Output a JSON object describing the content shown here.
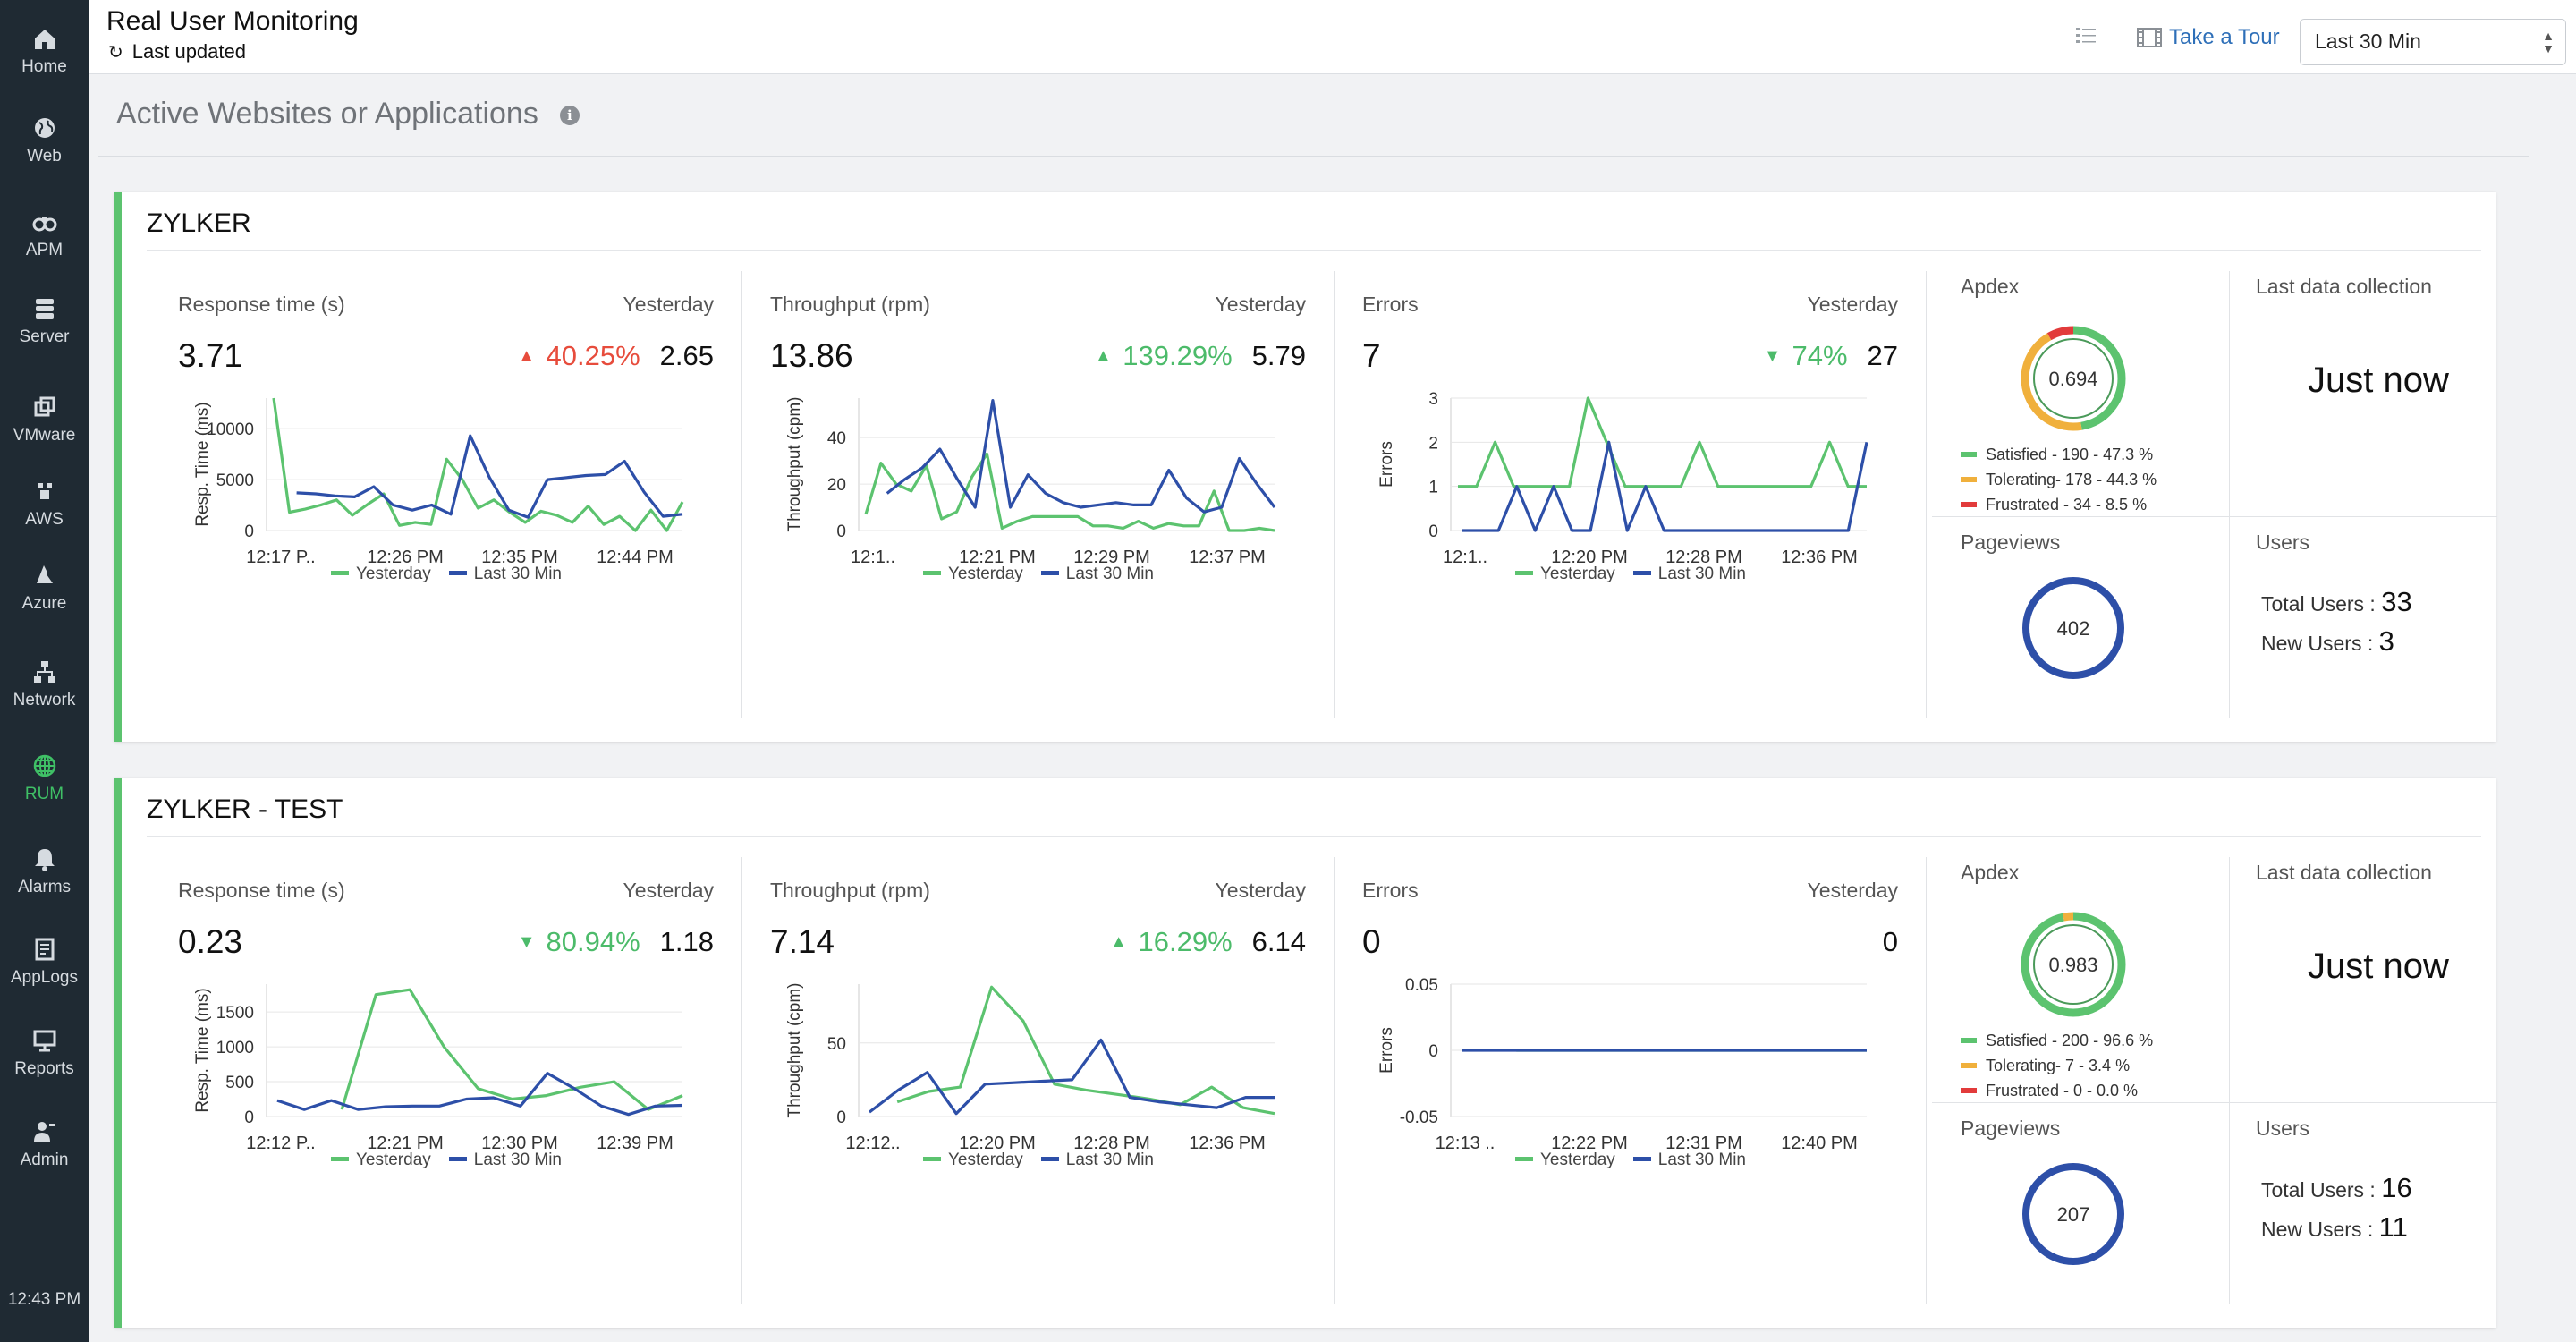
{
  "sidebar": {
    "items": [
      {
        "label": "Home",
        "icon": "home-icon"
      },
      {
        "label": "Web",
        "icon": "globe-icon"
      },
      {
        "label": "APM",
        "icon": "binoculars-icon"
      },
      {
        "label": "Server",
        "icon": "server-icon"
      },
      {
        "label": "VMware",
        "icon": "vmware-icon"
      },
      {
        "label": "AWS",
        "icon": "aws-icon"
      },
      {
        "label": "Azure",
        "icon": "azure-icon"
      },
      {
        "label": "Network",
        "icon": "network-icon"
      },
      {
        "label": "RUM",
        "icon": "rum-globe-icon",
        "active": true
      },
      {
        "label": "Alarms",
        "icon": "bell-icon"
      },
      {
        "label": "AppLogs",
        "icon": "applogs-icon"
      },
      {
        "label": "Reports",
        "icon": "reports-icon"
      },
      {
        "label": "Admin",
        "icon": "admin-icon"
      }
    ],
    "clock": "12:43 PM"
  },
  "header": {
    "title": "Real User Monitoring",
    "last_updated": "Last updated",
    "tour_label": "Take a Tour",
    "range_value": "Last 30 Min"
  },
  "section": {
    "title": "Active Websites or Applications"
  },
  "colors": {
    "yesterday": "#5cc36f",
    "last30": "#2d4fa8",
    "satisfied": "#5cc36f",
    "tolerating": "#f0b03c",
    "frustrated": "#e23b3b",
    "accent_bad": "#e74c3c",
    "accent_good": "#4cbb6a"
  },
  "legend": {
    "yesterday": "Yesterday",
    "last30": "Last 30 Min"
  },
  "apps": [
    {
      "name": "ZYLKER",
      "panels": [
        {
          "title": "Response time (s)",
          "yesterday_label": "Yesterday",
          "value": "3.71",
          "change": "40.25%",
          "direction": "up",
          "good": false,
          "yesterday_value": "2.65"
        },
        {
          "title": "Throughput (rpm)",
          "yesterday_label": "Yesterday",
          "value": "13.86",
          "change": "139.29%",
          "direction": "up",
          "good": true,
          "yesterday_value": "5.79"
        },
        {
          "title": "Errors",
          "yesterday_label": "Yesterday",
          "value": "7",
          "change": "74%",
          "direction": "down",
          "good": true,
          "yesterday_value": "27"
        }
      ],
      "apdex": {
        "title": "Apdex",
        "score": "0.694",
        "satisfied": "Satisfied  - 190 - 47.3 %",
        "tolerating": "Tolerating- 178 - 44.3 %",
        "frustrated": "Frustrated - 34 - 8.5 %",
        "satisfied_frac": 0.473,
        "tolerating_frac": 0.443,
        "frustrated_frac": 0.085
      },
      "last_collection": {
        "title": "Last data collection",
        "value": "Just now"
      },
      "pageviews": {
        "title": "Pageviews",
        "value": "402"
      },
      "users": {
        "title": "Users",
        "total_label": "Total Users : ",
        "total": "33",
        "new_label": "New Users : ",
        "new": "3"
      }
    },
    {
      "name": "ZYLKER - TEST",
      "panels": [
        {
          "title": "Response time (s)",
          "yesterday_label": "Yesterday",
          "value": "0.23",
          "change": "80.94%",
          "direction": "down",
          "good": true,
          "yesterday_value": "1.18"
        },
        {
          "title": "Throughput (rpm)",
          "yesterday_label": "Yesterday",
          "value": "7.14",
          "change": "16.29%",
          "direction": "up",
          "good": true,
          "yesterday_value": "6.14"
        },
        {
          "title": "Errors",
          "yesterday_label": "Yesterday",
          "value": "0",
          "change": "",
          "direction": "none",
          "good": true,
          "yesterday_value": "0"
        }
      ],
      "apdex": {
        "title": "Apdex",
        "score": "0.983",
        "satisfied": "Satisfied  - 200 - 96.6 %",
        "tolerating": "Tolerating- 7 - 3.4 %",
        "frustrated": "Frustrated - 0 - 0.0 %",
        "satisfied_frac": 0.966,
        "tolerating_frac": 0.034,
        "frustrated_frac": 0.0
      },
      "last_collection": {
        "title": "Last data collection",
        "value": "Just now"
      },
      "pageviews": {
        "title": "Pageviews",
        "value": "207"
      },
      "users": {
        "title": "Users",
        "total_label": "Total Users : ",
        "total": "16",
        "new_label": "New Users : ",
        "new": "11"
      }
    }
  ],
  "chart_data": [
    {
      "type": "line",
      "ylabel": "Resp. Time (ms)",
      "ylim": [
        0,
        13000
      ],
      "yticks": [
        0,
        5000,
        10000
      ],
      "xticks": [
        "12:17 P..",
        "12:26 PM",
        "12:35 PM",
        "12:44 PM"
      ],
      "series": [
        {
          "name": "Yesterday",
          "values": [
            13000,
            1800,
            2100,
            2500,
            3000,
            1500,
            2600,
            3600,
            500,
            800,
            600,
            7000,
            5000,
            2200,
            3000,
            1800,
            800,
            1900,
            1500,
            800,
            2400,
            600,
            1400,
            0,
            2000,
            0,
            2800
          ]
        },
        {
          "name": "Last 30 Min",
          "values": [
            null,
            3700,
            3600,
            3400,
            3300,
            4300,
            2500,
            2000,
            2500,
            1600,
            9300,
            5200,
            2000,
            1300,
            5000,
            5200,
            5400,
            5500,
            6800,
            3800,
            1400,
            1600
          ]
        }
      ]
    },
    {
      "type": "line",
      "ylabel": "Throughput (cpm)",
      "ylim": [
        0,
        57
      ],
      "yticks": [
        0,
        20,
        40
      ],
      "xticks": [
        "12:1..",
        "12:21 PM",
        "12:29 PM",
        "12:37 PM"
      ],
      "series": [
        {
          "name": "Yesterday",
          "values": [
            7,
            29,
            20,
            17,
            28,
            5,
            8,
            23,
            33,
            1,
            4,
            6,
            6,
            6,
            6,
            2,
            2,
            1,
            4,
            1,
            3,
            2,
            2,
            17,
            0,
            0,
            1,
            0
          ]
        },
        {
          "name": "Last 30 Min",
          "values": [
            null,
            16,
            22,
            27,
            35,
            22,
            10,
            56,
            10,
            24,
            16,
            12,
            10,
            11,
            12,
            11,
            11,
            26,
            14,
            8,
            10,
            31,
            20,
            10
          ]
        }
      ]
    },
    {
      "type": "line",
      "ylabel": "Errors",
      "ylim": [
        0,
        3
      ],
      "yticks": [
        0,
        1,
        2,
        3
      ],
      "xticks": [
        "12:1..",
        "12:20 PM",
        "12:28 PM",
        "12:36 PM"
      ],
      "series": [
        {
          "name": "Yesterday",
          "values": [
            1,
            1,
            2,
            1,
            1,
            1,
            1,
            3,
            2,
            1,
            1,
            1,
            1,
            2,
            1,
            1,
            1,
            1,
            1,
            1,
            2,
            1,
            1
          ]
        },
        {
          "name": "Last 30 Min",
          "values": [
            0,
            0,
            0,
            1,
            0,
            1,
            0,
            0,
            2,
            0,
            1,
            0,
            0,
            0,
            0,
            0,
            0,
            0,
            0,
            0,
            0,
            0,
            2
          ]
        }
      ]
    },
    {
      "type": "line",
      "ylabel": "Resp. Time (ms)",
      "ylim": [
        0,
        1900
      ],
      "yticks": [
        0,
        500,
        1000,
        1500
      ],
      "xticks": [
        "12:12 P..",
        "12:21 PM",
        "12:30 PM",
        "12:39 PM"
      ],
      "series": [
        {
          "name": "Yesterday",
          "values": [
            null,
            null,
            100,
            1750,
            1820,
            1000,
            400,
            250,
            300,
            420,
            500,
            100,
            300
          ]
        },
        {
          "name": "Last 30 Min",
          "values": [
            230,
            100,
            230,
            100,
            140,
            150,
            150,
            250,
            270,
            150,
            620,
            400,
            150,
            30,
            150,
            160
          ]
        }
      ]
    },
    {
      "type": "line",
      "ylabel": "Throughput (cpm)",
      "ylim": [
        0,
        90
      ],
      "yticks": [
        0,
        50
      ],
      "xticks": [
        "12:12..",
        "12:20 PM",
        "12:28 PM",
        "12:36 PM"
      ],
      "series": [
        {
          "name": "Yesterday",
          "values": [
            null,
            10,
            17,
            20,
            88,
            65,
            22,
            18,
            15,
            12,
            8,
            20,
            6,
            2
          ]
        },
        {
          "name": "Last 30 Min",
          "values": [
            3,
            18,
            30,
            2,
            22,
            23,
            24,
            25,
            52,
            13,
            10,
            8,
            6,
            13,
            13
          ]
        }
      ]
    },
    {
      "type": "line",
      "ylabel": "Errors",
      "ylim": [
        -0.05,
        0.05
      ],
      "yticks": [
        -0.05,
        0,
        0.05
      ],
      "xticks": [
        "12:13 ..",
        "12:22 PM",
        "12:31 PM",
        "12:40 PM"
      ],
      "series": [
        {
          "name": "Yesterday",
          "values": [
            null,
            null,
            0,
            0,
            0,
            0,
            0,
            0,
            0,
            0,
            0,
            0,
            0,
            0,
            0
          ]
        },
        {
          "name": "Last 30 Min",
          "values": [
            0,
            0,
            0
          ]
        }
      ]
    }
  ]
}
